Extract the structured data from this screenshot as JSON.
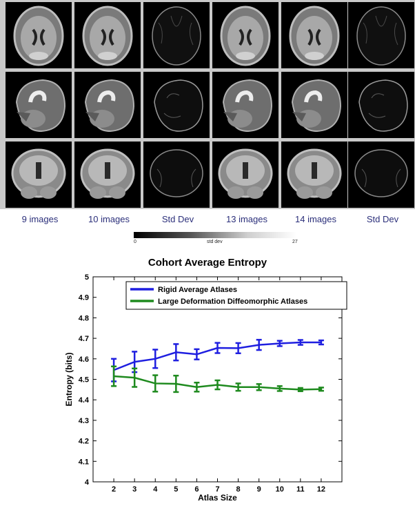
{
  "column_labels": [
    "9 images",
    "10 images",
    "Std Dev",
    "13 images",
    "14 images",
    "Std Dev"
  ],
  "colorbar": {
    "min_label": "0",
    "mid_label": "std dev",
    "max_label": "27"
  },
  "chart_data": {
    "type": "line",
    "title": "Cohort Average Entropy",
    "xlabel": "Atlas Size",
    "ylabel": "Entropy (bits)",
    "x": [
      2,
      3,
      4,
      5,
      6,
      7,
      8,
      9,
      10,
      11,
      12
    ],
    "xlim": [
      1,
      13
    ],
    "ylim": [
      4,
      5
    ],
    "yticks": [
      "4",
      "4.1",
      "4.2",
      "4.3",
      "4.4",
      "4.5",
      "4.6",
      "4.7",
      "4.8",
      "4.9",
      "5"
    ],
    "xticks": [
      "2",
      "3",
      "4",
      "5",
      "6",
      "7",
      "8",
      "9",
      "10",
      "11",
      "12"
    ],
    "legend_position": "top",
    "series": [
      {
        "name": "Rigid Average Atlases",
        "color": "#1f1fe0",
        "values": [
          4.545,
          4.585,
          4.6,
          4.632,
          4.622,
          4.653,
          4.652,
          4.668,
          4.675,
          4.68,
          4.68
        ],
        "errors": [
          0.055,
          0.05,
          0.045,
          0.04,
          0.025,
          0.025,
          0.025,
          0.025,
          0.013,
          0.012,
          0.01
        ]
      },
      {
        "name": "Large Deformation Diffeomorphic Atlases",
        "color": "#1e8a1e",
        "values": [
          4.515,
          4.508,
          4.48,
          4.478,
          4.462,
          4.473,
          4.462,
          4.462,
          4.455,
          4.45,
          4.452
        ],
        "errors": [
          0.048,
          0.045,
          0.04,
          0.04,
          0.022,
          0.022,
          0.018,
          0.015,
          0.012,
          0.008,
          0.008
        ]
      }
    ]
  }
}
